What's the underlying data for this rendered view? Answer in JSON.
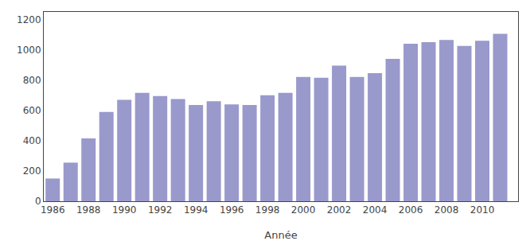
{
  "chart_data": {
    "type": "bar",
    "x": [
      1986,
      1987,
      1988,
      1989,
      1990,
      1991,
      1992,
      1993,
      1994,
      1995,
      1996,
      1997,
      1998,
      1999,
      2000,
      2001,
      2002,
      2003,
      2004,
      2005,
      2006,
      2007,
      2008,
      2009,
      2010,
      2011
    ],
    "values": [
      150,
      255,
      415,
      590,
      670,
      715,
      695,
      675,
      635,
      660,
      640,
      635,
      700,
      715,
      820,
      815,
      895,
      820,
      845,
      940,
      1040,
      1050,
      1065,
      1025,
      1060,
      1105
    ],
    "color": "#9999cc",
    "xlabel": "Année",
    "xlim": [
      1985.5,
      2012
    ],
    "xticks": [
      1986,
      1988,
      1990,
      1992,
      1994,
      1996,
      1998,
      2000,
      2002,
      2004,
      2006,
      2008,
      2010
    ],
    "ylim": [
      0,
      1250
    ],
    "yticks": [
      0,
      200,
      400,
      600,
      800,
      1000,
      1200
    ],
    "grid": false
  }
}
